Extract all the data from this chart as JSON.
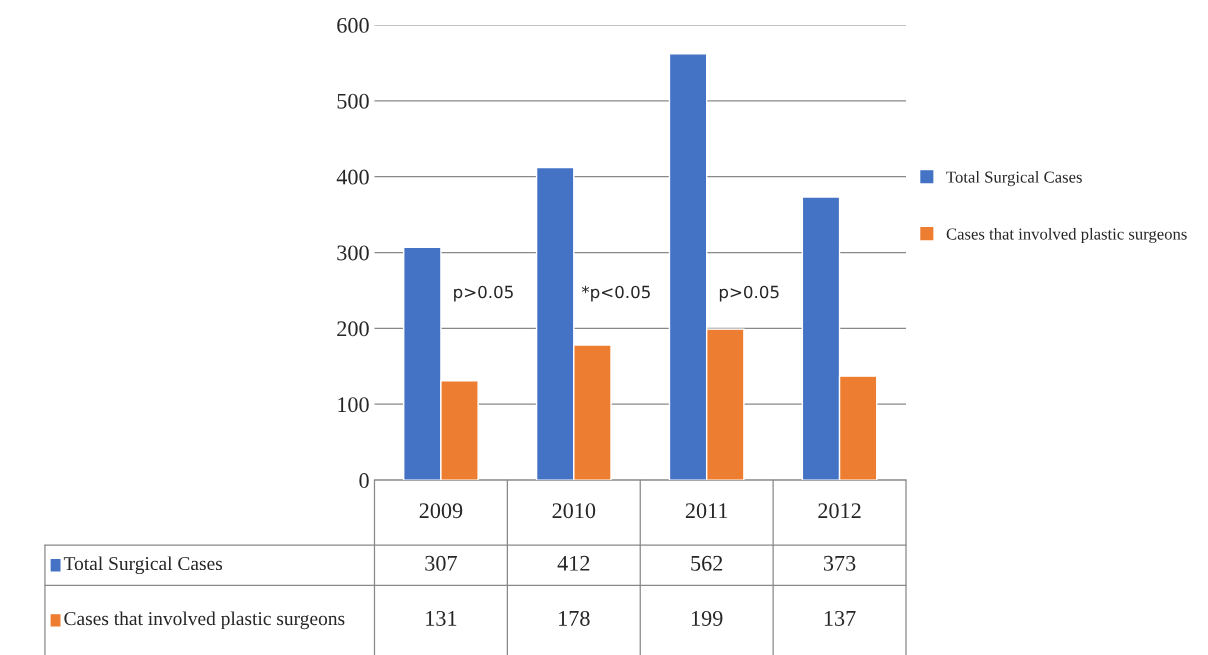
{
  "chart_data": {
    "type": "bar",
    "categories": [
      "2009",
      "2010",
      "2011",
      "2012"
    ],
    "series": [
      {
        "name": "Total Surgical Cases",
        "color": "#4472c4",
        "values": [
          307,
          412,
          562,
          373
        ]
      },
      {
        "name": "Cases that involved plastic surgeons",
        "color": "#ed7d31",
        "values": [
          131,
          178,
          199,
          137
        ]
      }
    ],
    "ylim": [
      0,
      600
    ],
    "yticks": [
      0,
      100,
      200,
      300,
      400,
      500,
      600
    ],
    "grid": "y",
    "legend": "right",
    "data_labels": true,
    "annotations": [
      "p>0.05",
      "*p<0.05",
      "p>0.05"
    ]
  }
}
